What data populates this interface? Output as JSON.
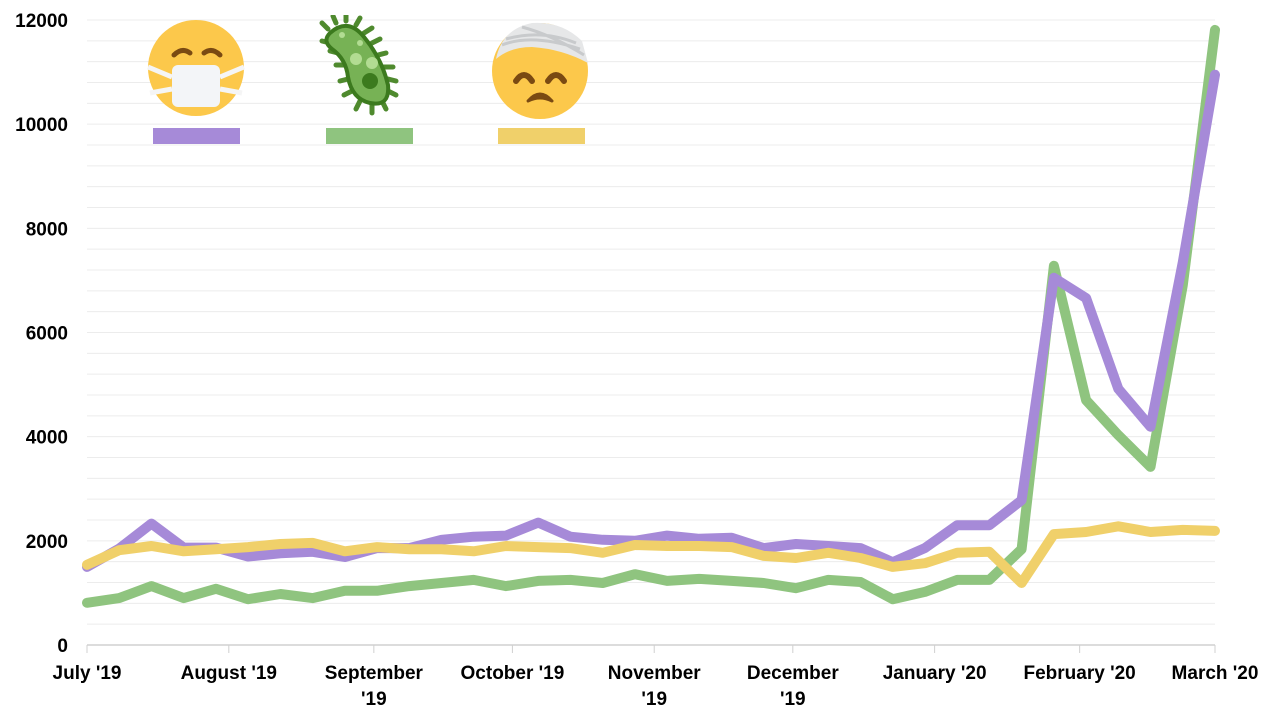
{
  "chart_data": {
    "type": "line",
    "title": "",
    "xlabel": "",
    "ylabel": "",
    "ylim": [
      0,
      12000
    ],
    "yticks": [
      0,
      2000,
      4000,
      6000,
      8000,
      10000,
      12000
    ],
    "minor_grid_step": 400,
    "grid": true,
    "legend_position": "top-left (icon legend)",
    "x_tick_labels": [
      "July '19",
      "August '19",
      "September '19",
      "October '19",
      "November '19",
      "December '19",
      "January '20",
      "February '20",
      "March '20"
    ],
    "x_tick_index": [
      0,
      4.4,
      8.9,
      13.2,
      17.6,
      21.9,
      26.3,
      30.8,
      35
    ],
    "x_count": 36,
    "series": [
      {
        "name": "Face with medical mask",
        "icon": "face-with-medical-mask-icon",
        "color": "#a68ad8",
        "values": [
          1500,
          1850,
          2330,
          1870,
          1870,
          1700,
          1760,
          1790,
          1690,
          1860,
          1860,
          2020,
          2080,
          2100,
          2350,
          2080,
          2020,
          2000,
          2100,
          2040,
          2060,
          1860,
          1940,
          1900,
          1860,
          1590,
          1860,
          2300,
          2300,
          2780,
          7050,
          6660,
          4920,
          4190,
          7350,
          10950
        ]
      },
      {
        "name": "Microbe",
        "icon": "microbe-icon",
        "color": "#8fc47f",
        "values": [
          810,
          900,
          1130,
          900,
          1080,
          880,
          980,
          900,
          1040,
          1040,
          1130,
          1190,
          1250,
          1130,
          1230,
          1250,
          1190,
          1360,
          1230,
          1270,
          1230,
          1190,
          1090,
          1250,
          1210,
          880,
          1020,
          1250,
          1250,
          1840,
          7280,
          4700,
          4030,
          3420,
          6910,
          11810
        ]
      },
      {
        "name": "Face with head bandage",
        "icon": "face-with-head-bandage-icon",
        "color": "#f0d06a",
        "values": [
          1540,
          1820,
          1900,
          1800,
          1840,
          1880,
          1940,
          1960,
          1800,
          1880,
          1840,
          1840,
          1800,
          1900,
          1880,
          1860,
          1770,
          1920,
          1900,
          1900,
          1880,
          1710,
          1670,
          1770,
          1670,
          1500,
          1570,
          1770,
          1790,
          1190,
          2130,
          2170,
          2280,
          2170,
          2210,
          2190
        ]
      }
    ]
  },
  "legend": [
    {
      "label": "Face with medical mask",
      "color": "#a68ad8"
    },
    {
      "label": "Microbe",
      "color": "#8fc47f"
    },
    {
      "label": "Face with head bandage",
      "color": "#f0d06a"
    }
  ],
  "axis": {
    "y_labels": [
      "0",
      "2000",
      "4000",
      "6000",
      "8000",
      "10000",
      "12000"
    ],
    "x_labels": [
      {
        "lines": [
          "July '19"
        ]
      },
      {
        "lines": [
          "August '19"
        ]
      },
      {
        "lines": [
          "September",
          "'19"
        ]
      },
      {
        "lines": [
          "October '19"
        ]
      },
      {
        "lines": [
          "November",
          "'19"
        ]
      },
      {
        "lines": [
          "December",
          "'19"
        ]
      },
      {
        "lines": [
          "January '20"
        ]
      },
      {
        "lines": [
          "February '20"
        ]
      },
      {
        "lines": [
          "March '20"
        ]
      }
    ]
  }
}
